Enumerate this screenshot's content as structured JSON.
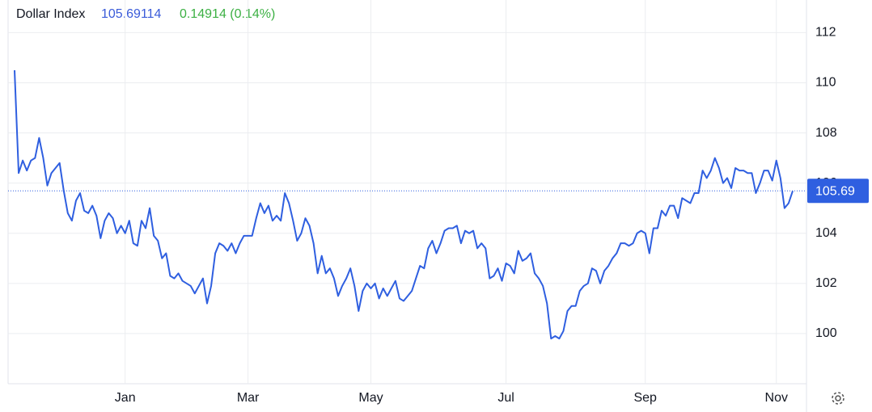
{
  "header": {
    "value": 105.69114,
    "change": "0.14914 (0.14%)"
  },
  "chart_data": {
    "type": "line",
    "categories": [
      null,
      null,
      null,
      null,
      null,
      null,
      null,
      null,
      null,
      null,
      null,
      null,
      null,
      null,
      null,
      null,
      null,
      null,
      null,
      null,
      null,
      null,
      null,
      null,
      null,
      null,
      null,
      "Jan",
      null,
      null,
      null,
      null,
      null,
      null,
      null,
      null,
      null,
      null,
      null,
      null,
      null,
      null,
      null,
      null,
      null,
      null,
      null,
      null,
      null,
      null,
      null,
      null,
      null,
      null,
      null,
      null,
      null,
      "Mar",
      null,
      null,
      null,
      null,
      null,
      null,
      null,
      null,
      null,
      null,
      null,
      null,
      null,
      null,
      null,
      null,
      null,
      null,
      null,
      null,
      null,
      null,
      null,
      null,
      null,
      null,
      null,
      null,
      null,
      "May",
      null,
      null,
      null,
      null,
      null,
      null,
      null,
      null,
      null,
      null,
      null,
      null,
      null,
      null,
      null,
      null,
      null,
      null,
      null,
      null,
      null,
      null,
      null,
      null,
      null,
      null,
      null,
      null,
      null,
      null,
      null,
      null,
      "Jul",
      null,
      null,
      null,
      null,
      null,
      null,
      null,
      null,
      null,
      null,
      null,
      null,
      null,
      null,
      null,
      null,
      null,
      null,
      null,
      null,
      null,
      null,
      null,
      null,
      null,
      null,
      null,
      null,
      null,
      null,
      null,
      null,
      null,
      "Sep",
      null,
      null,
      null,
      null,
      null,
      null,
      null,
      null,
      null,
      null,
      null,
      null,
      null,
      null,
      null,
      null,
      null,
      null,
      null,
      null,
      null,
      null,
      null,
      null,
      null,
      null,
      null,
      null,
      null,
      null,
      null,
      "Nov",
      null,
      null,
      null,
      null
    ],
    "series": [
      {
        "name": "Dollar Index",
        "color": "#2f5fe0",
        "values": [
          110.5,
          106.4,
          106.9,
          106.5,
          106.9,
          107.0,
          107.8,
          107.0,
          105.9,
          106.4,
          106.6,
          106.8,
          105.7,
          104.8,
          104.5,
          105.3,
          105.6,
          104.9,
          104.8,
          105.1,
          104.7,
          103.8,
          104.5,
          104.8,
          104.6,
          104.0,
          104.3,
          104.0,
          104.5,
          103.6,
          103.5,
          104.5,
          104.2,
          105.0,
          103.9,
          103.7,
          103.0,
          103.2,
          102.3,
          102.2,
          102.4,
          102.1,
          102.0,
          101.9,
          101.6,
          101.9,
          102.2,
          101.2,
          101.9,
          103.2,
          103.6,
          103.5,
          103.3,
          103.6,
          103.2,
          103.6,
          103.9,
          103.9,
          103.9,
          104.6,
          105.2,
          104.8,
          105.1,
          104.5,
          104.7,
          104.5,
          105.6,
          105.2,
          104.5,
          103.7,
          104.0,
          104.6,
          104.3,
          103.6,
          102.4,
          103.1,
          102.4,
          102.6,
          102.2,
          101.5,
          101.9,
          102.2,
          102.6,
          101.9,
          100.9,
          101.7,
          102.0,
          101.8,
          102.0,
          101.4,
          101.8,
          101.5,
          101.8,
          102.1,
          101.4,
          101.3,
          101.5,
          101.7,
          102.2,
          102.7,
          102.6,
          103.4,
          103.7,
          103.2,
          103.6,
          104.1,
          104.2,
          104.2,
          104.3,
          103.6,
          104.1,
          104.0,
          104.1,
          103.4,
          103.6,
          103.4,
          102.2,
          102.3,
          102.6,
          102.1,
          102.8,
          102.7,
          102.4,
          103.3,
          102.9,
          103.0,
          103.2,
          102.4,
          102.2,
          101.9,
          101.2,
          99.8,
          99.9,
          99.8,
          100.1,
          100.9,
          101.1,
          101.1,
          101.7,
          101.9,
          102.0,
          102.6,
          102.5,
          102.0,
          102.5,
          102.7,
          103.0,
          103.2,
          103.6,
          103.6,
          103.5,
          103.6,
          104.0,
          104.1,
          104.0,
          103.2,
          104.2,
          104.2,
          104.9,
          104.7,
          105.1,
          105.1,
          104.6,
          105.4,
          105.3,
          105.2,
          105.6,
          105.6,
          106.5,
          106.2,
          106.5,
          107.0,
          106.6,
          106.0,
          106.2,
          105.8,
          106.6,
          106.5,
          106.5,
          106.4,
          106.4,
          105.6,
          106.0,
          106.5,
          106.5,
          106.1,
          106.9,
          106.2,
          105.0,
          105.2,
          105.69
        ]
      }
    ],
    "ylim": [
      98,
      113.3
    ],
    "yticks": [
      100,
      102,
      104,
      106,
      108,
      110,
      112
    ],
    "price_line": 105.69,
    "grid": true
  }
}
